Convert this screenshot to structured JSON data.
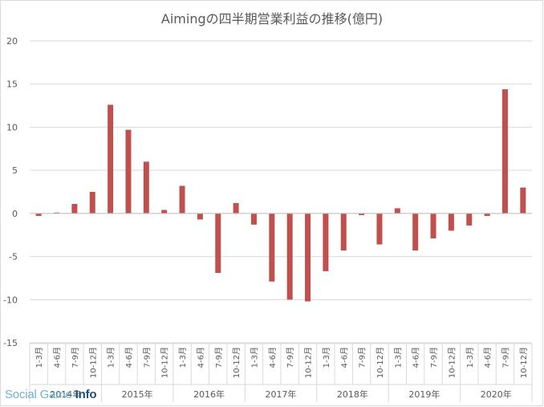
{
  "chart_data": {
    "type": "bar",
    "title": "Aimingの四半期営業利益の推移(億円)",
    "ylim": [
      -15,
      20
    ],
    "yticks": [
      -15,
      -10,
      -5,
      0,
      5,
      10,
      15,
      20
    ],
    "ytick_labels": [
      "-15",
      "-10",
      "-5",
      "0",
      "5",
      "10",
      "15",
      "20"
    ],
    "bar_color": "#c0504d",
    "grid": true,
    "legend": "none",
    "categories": [
      "1-3月",
      "4-6月",
      "7-9月",
      "10-12月",
      "1-3月",
      "4-6月",
      "7-9月",
      "10-12月",
      "1-3月",
      "4-6月",
      "7-9月",
      "10-12月",
      "1-3月",
      "4-6月",
      "7-9月",
      "10-12月",
      "1-3月",
      "4-6月",
      "7-9月",
      "10-12月",
      "1-3月",
      "4-6月",
      "7-9月",
      "10-12月",
      "1-3月",
      "4-6月",
      "7-9月",
      "10-12月"
    ],
    "groups": [
      "2014年",
      "2015年",
      "2016年",
      "2017年",
      "2018年",
      "2019年",
      "2020年"
    ],
    "values": [
      -0.3,
      0.1,
      1.1,
      2.5,
      12.6,
      9.7,
      6.0,
      0.4,
      3.2,
      -0.7,
      -6.9,
      1.2,
      -1.3,
      -7.9,
      -10.0,
      -10.2,
      -6.7,
      -4.3,
      -0.2,
      -3.6,
      0.6,
      -4.3,
      -2.9,
      -2.0,
      -1.4,
      -0.3,
      14.4,
      3.0
    ]
  },
  "watermark": {
    "part1": "Social Ga",
    "part2": "me",
    "part3": "Info"
  }
}
